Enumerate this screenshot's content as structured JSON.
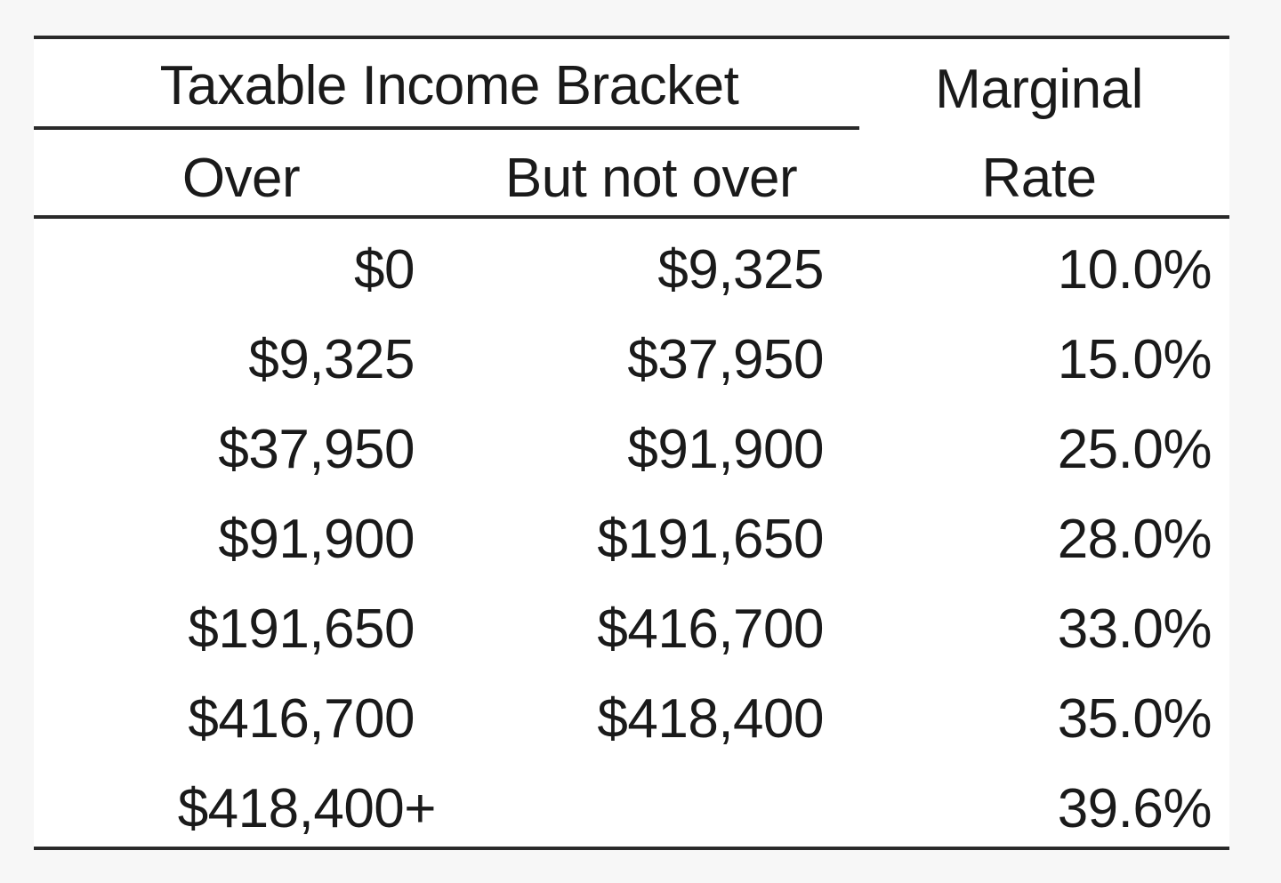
{
  "table": {
    "header": {
      "group_label": "Taxable Income Bracket",
      "col_over": "Over",
      "col_but_not_over": "But not over",
      "col_rate_line1": "Marginal",
      "col_rate_line2": "Rate"
    },
    "rows": [
      {
        "over": "$0",
        "but_not_over": "$9,325",
        "rate": "10.0%"
      },
      {
        "over": "$9,325",
        "but_not_over": "$37,950",
        "rate": "15.0%"
      },
      {
        "over": "$37,950",
        "but_not_over": "$91,900",
        "rate": "25.0%"
      },
      {
        "over": "$91,900",
        "but_not_over": "$191,650",
        "rate": "28.0%"
      },
      {
        "over": "$191,650",
        "but_not_over": "$416,700",
        "rate": "33.0%"
      },
      {
        "over": "$416,700",
        "but_not_over": "$418,400",
        "rate": "35.0%"
      },
      {
        "over": "$418,400+",
        "but_not_over": "",
        "rate": "39.6%"
      }
    ]
  }
}
